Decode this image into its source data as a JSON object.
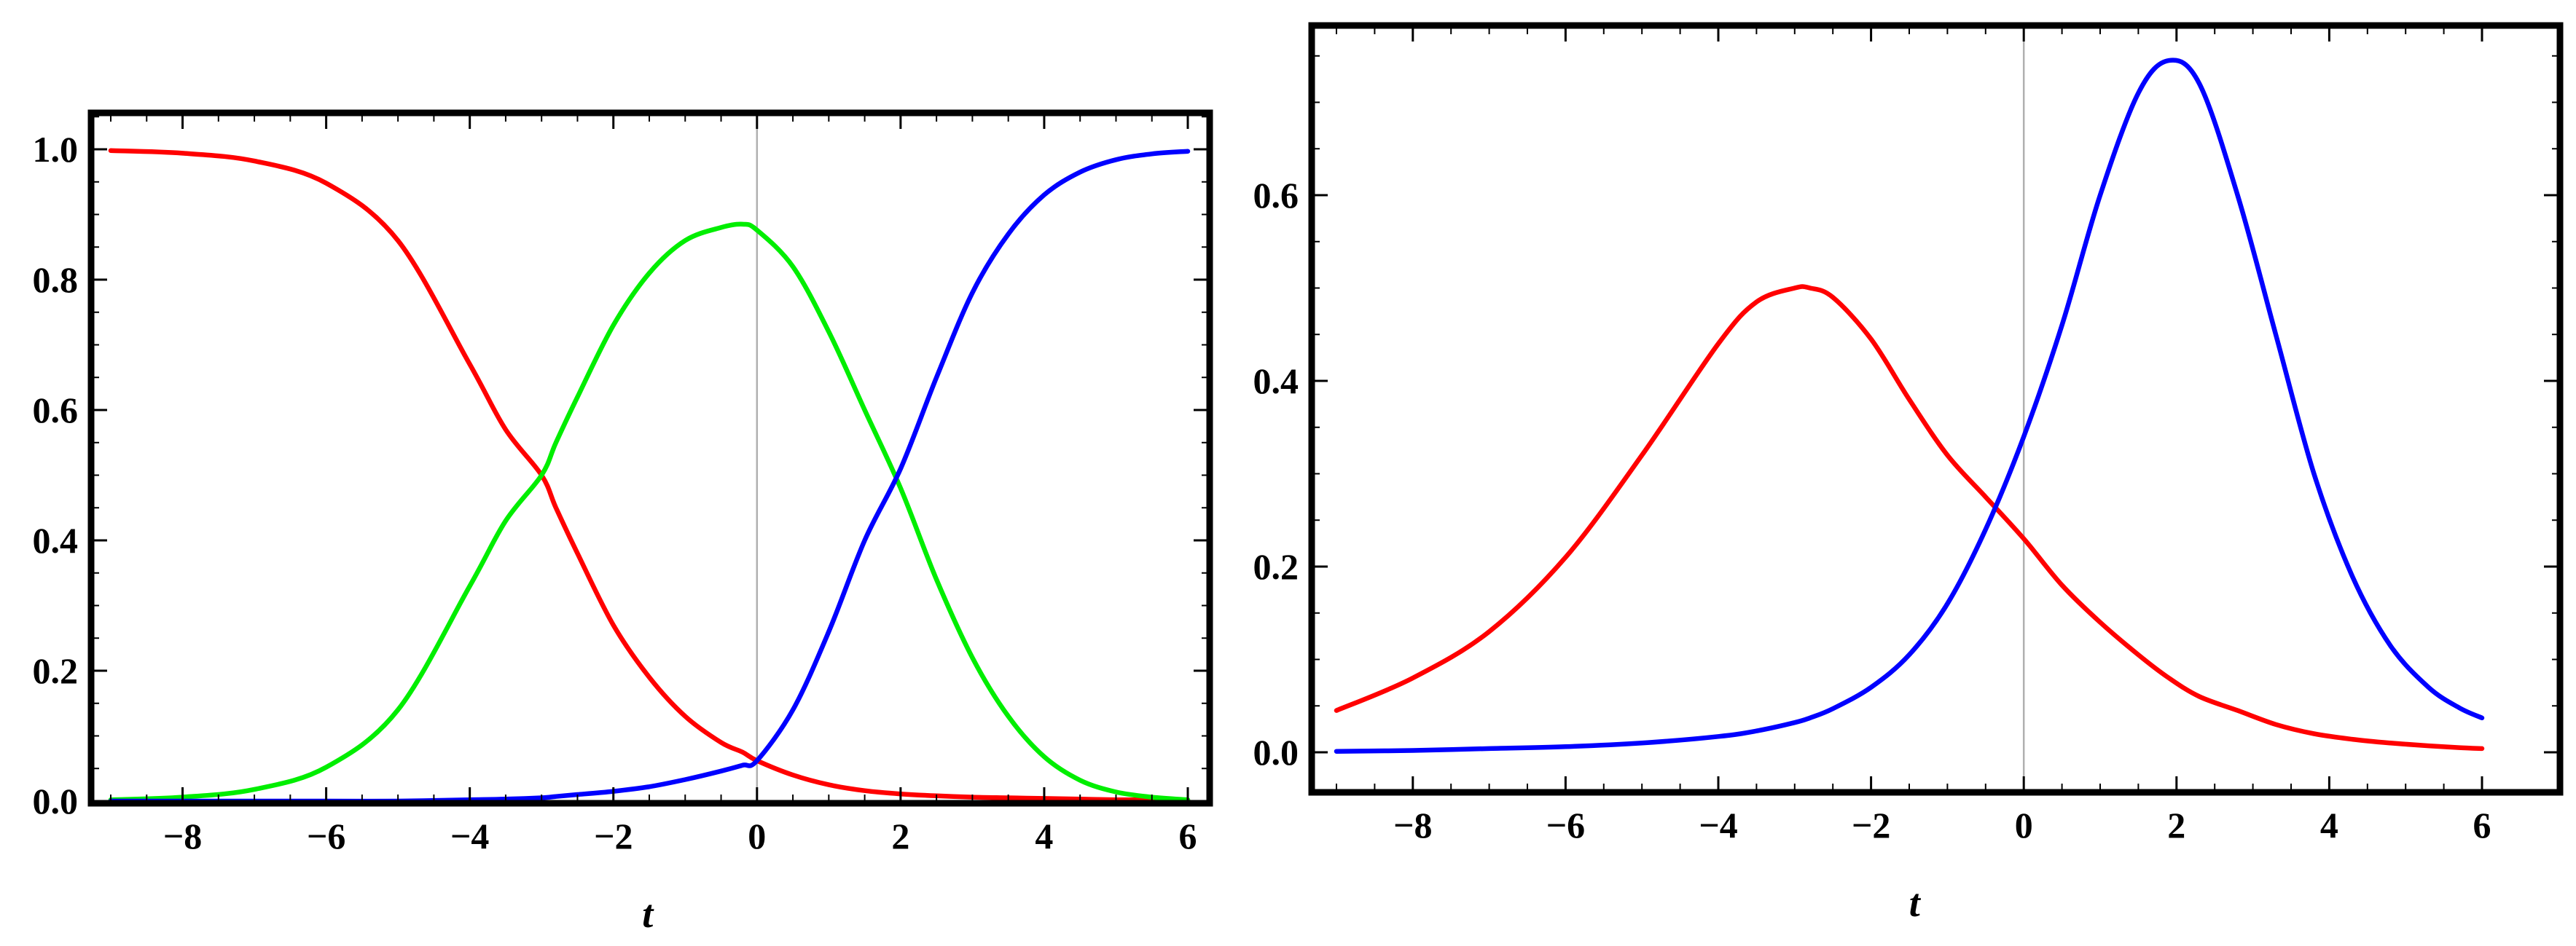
{
  "chart_data": [
    {
      "type": "line",
      "title": "",
      "xlabel": "t",
      "ylabel": "",
      "xlim": [
        -9,
        6
      ],
      "ylim": [
        0,
        1.0
      ],
      "grid": false,
      "x_ticks": [
        "−8",
        "−6",
        "−4",
        "−2",
        "0",
        "2",
        "4",
        "6"
      ],
      "y_ticks": [
        "0.0",
        "0.2",
        "0.4",
        "0.6",
        "0.8",
        "1.0"
      ],
      "x": [
        -9,
        -8,
        -7,
        -6,
        -5,
        -4,
        -3.5,
        -3,
        -2.8,
        -2.5,
        -2,
        -1.5,
        -1,
        -0.5,
        -0.2,
        0,
        0.5,
        1,
        1.5,
        2,
        2.5,
        3,
        3.5,
        4,
        4.5,
        5,
        5.5,
        6
      ],
      "series": [
        {
          "color": "#ff0000",
          "values": [
            0.998,
            0.994,
            0.982,
            0.948,
            0.86,
            0.67,
            0.57,
            0.5,
            0.45,
            0.38,
            0.27,
            0.19,
            0.13,
            0.09,
            0.075,
            0.062,
            0.04,
            0.025,
            0.016,
            0.011,
            0.008,
            0.006,
            0.005,
            0.004,
            0.003,
            0.002,
            0.002,
            0.001
          ]
        },
        {
          "color": "#00ee00",
          "values": [
            0.002,
            0.006,
            0.018,
            0.052,
            0.14,
            0.33,
            0.43,
            0.5,
            0.55,
            0.62,
            0.73,
            0.81,
            0.86,
            0.88,
            0.885,
            0.876,
            0.82,
            0.72,
            0.6,
            0.48,
            0.34,
            0.22,
            0.13,
            0.068,
            0.032,
            0.014,
            0.006,
            0.002
          ]
        },
        {
          "color": "#0000ff",
          "values": [
            0.0,
            0.0,
            0.0,
            0.0,
            0.0,
            0.002,
            0.003,
            0.005,
            0.007,
            0.01,
            0.015,
            0.022,
            0.033,
            0.046,
            0.055,
            0.062,
            0.14,
            0.26,
            0.4,
            0.51,
            0.65,
            0.78,
            0.87,
            0.93,
            0.965,
            0.984,
            0.993,
            0.997
          ]
        }
      ]
    },
    {
      "type": "line",
      "title": "",
      "xlabel": "t",
      "ylabel": "",
      "xlim": [
        -9,
        6
      ],
      "ylim": [
        -0.04,
        0.76
      ],
      "grid": false,
      "x_ticks": [
        "−8",
        "−6",
        "−4",
        "−2",
        "0",
        "2",
        "4",
        "6"
      ],
      "y_ticks": [
        "0.0",
        "0.2",
        "0.4",
        "0.6"
      ],
      "x": [
        -9,
        -8,
        -7,
        -6,
        -5,
        -4,
        -3.5,
        -3,
        -2.8,
        -2.5,
        -2,
        -1.5,
        -1,
        -0.5,
        0,
        0.5,
        1,
        1.5,
        1.9,
        2.3,
        2.8,
        3.3,
        3.8,
        4.3,
        4.8,
        5.3,
        5.7,
        6
      ],
      "series": [
        {
          "color": "#ff0000",
          "values": [
            0.045,
            0.08,
            0.13,
            0.21,
            0.32,
            0.44,
            0.485,
            0.5,
            0.5,
            0.49,
            0.445,
            0.38,
            0.32,
            0.275,
            0.23,
            0.18,
            0.14,
            0.105,
            0.08,
            0.06,
            0.045,
            0.03,
            0.02,
            0.014,
            0.01,
            0.007,
            0.005,
            0.004
          ]
        },
        {
          "color": "#0000ff",
          "values": [
            0.001,
            0.002,
            0.004,
            0.006,
            0.01,
            0.017,
            0.023,
            0.032,
            0.037,
            0.047,
            0.07,
            0.105,
            0.16,
            0.24,
            0.34,
            0.46,
            0.6,
            0.71,
            0.745,
            0.72,
            0.6,
            0.45,
            0.3,
            0.19,
            0.115,
            0.07,
            0.048,
            0.037
          ]
        }
      ]
    }
  ]
}
